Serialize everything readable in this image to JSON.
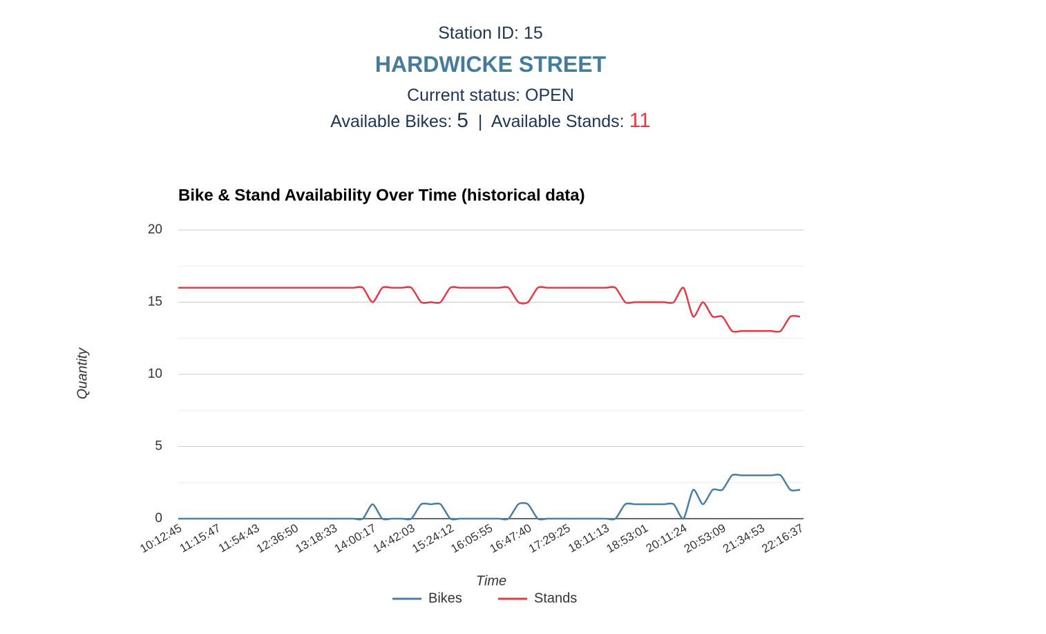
{
  "header": {
    "station": "Station ID: 15",
    "name": "HARDWICKE STREET",
    "status": "Current status: OPEN",
    "bikes_label": "Available Bikes:",
    "bikes": 5,
    "separator": "|",
    "stands_label": "Available Stands:",
    "stands": 11
  },
  "chart_data": {
    "type": "line",
    "title": "Bike & Stand Availability Over Time (historical data)",
    "x_label": "Time",
    "y_label": "Quantity",
    "categories": [
      "10:12:45",
      null,
      null,
      null,
      "11:15:47",
      null,
      null,
      null,
      "11:54:43",
      null,
      null,
      null,
      "12:36:50",
      null,
      null,
      null,
      "13:18:33",
      null,
      null,
      null,
      "14:00:17",
      null,
      null,
      null,
      "14:42:03",
      null,
      null,
      null,
      "15:24:12",
      null,
      null,
      null,
      "16:05:55",
      null,
      null,
      null,
      "16:47:40",
      null,
      null,
      null,
      "17:29:25",
      null,
      null,
      null,
      "18:11:13",
      null,
      null,
      null,
      "18:53:01",
      null,
      null,
      null,
      "20:11:24",
      null,
      null,
      null,
      "20:53:09",
      null,
      null,
      null,
      "21:34:53",
      null,
      null,
      null,
      "22:16:37"
    ],
    "series": [
      {
        "name": "Bikes",
        "color": "#4a7fa5",
        "values": [
          0,
          0,
          0,
          0,
          0,
          0,
          0,
          0,
          0,
          0,
          0,
          0,
          0,
          0,
          0,
          0,
          0,
          0,
          0,
          0,
          1,
          0,
          0,
          0,
          0,
          1,
          1,
          1,
          0,
          0,
          0,
          0,
          0,
          0,
          0,
          1,
          1,
          0,
          0,
          0,
          0,
          0,
          0,
          0,
          0,
          0,
          1,
          1,
          1,
          1,
          1,
          1,
          0,
          2,
          1,
          2,
          2,
          3,
          3,
          3,
          3,
          3,
          3,
          2,
          2
        ]
      },
      {
        "name": "Stands",
        "color": "#e63946",
        "values": [
          16,
          16,
          16,
          16,
          16,
          16,
          16,
          16,
          16,
          16,
          16,
          16,
          16,
          16,
          16,
          16,
          16,
          16,
          16,
          16,
          15,
          16,
          16,
          16,
          16,
          15,
          15,
          15,
          16,
          16,
          16,
          16,
          16,
          16,
          16,
          15,
          15,
          16,
          16,
          16,
          16,
          16,
          16,
          16,
          16,
          16,
          15,
          15,
          15,
          15,
          15,
          15,
          16,
          14,
          15,
          14,
          14,
          13,
          13,
          13,
          13,
          13,
          13,
          14,
          14
        ]
      }
    ],
    "ylim": [
      0,
      20
    ],
    "yticks": [
      0,
      5,
      10,
      15,
      20
    ],
    "grid": true,
    "legend": "bottom"
  }
}
